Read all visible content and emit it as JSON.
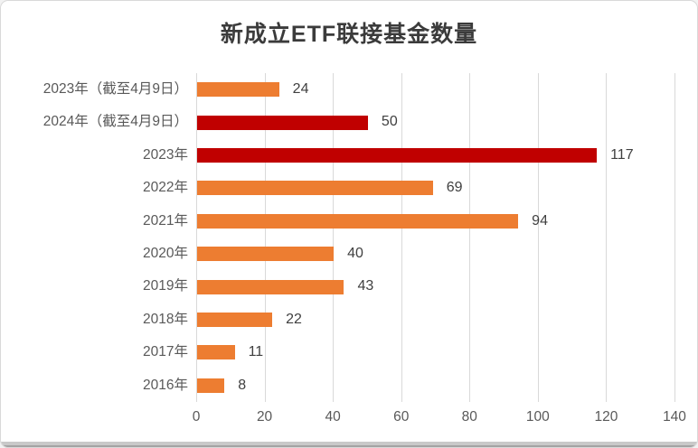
{
  "window": {
    "background": "#ffffff",
    "border_color": "#d9d9d9",
    "bottom_strip_color": "#c9c9c9"
  },
  "chart_data": {
    "type": "bar",
    "orientation": "horizontal",
    "title": "新成立ETF联接基金数量",
    "categories": [
      "2023年（截至4月9日）",
      "2024年（截至4月9日）",
      "2023年",
      "2022年",
      "2021年",
      "2020年",
      "2019年",
      "2018年",
      "2017年",
      "2016年"
    ],
    "values": [
      24,
      50,
      117,
      69,
      94,
      40,
      43,
      22,
      11,
      8
    ],
    "bar_colors": [
      "#ED7D31",
      "#C00000",
      "#C00000",
      "#ED7D31",
      "#ED7D31",
      "#ED7D31",
      "#ED7D31",
      "#ED7D31",
      "#ED7D31",
      "#ED7D31"
    ],
    "x_ticks": [
      0,
      20,
      40,
      60,
      80,
      100,
      120,
      140
    ],
    "xlim": [
      0,
      140
    ],
    "grid": "vertical-only",
    "legend": "none",
    "value_labels_shown": true,
    "colors": {
      "accent_orange": "#ED7D31",
      "accent_dark_red": "#C00000",
      "gridline": "#d9d9d9",
      "axis_tick_label": "#595959",
      "category_label": "#595959",
      "value_label": "#404040",
      "title": "#3b3b3b"
    }
  }
}
